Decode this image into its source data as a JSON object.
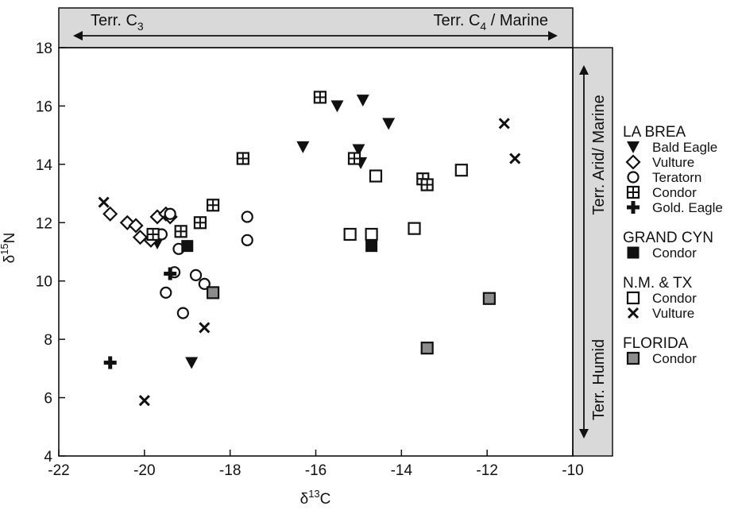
{
  "chart_data": {
    "type": "scatter",
    "xlabel": {
      "base": "δ",
      "sup": "13",
      "rest": "C"
    },
    "ylabel": {
      "base": "δ",
      "sup": "15",
      "rest": "N"
    },
    "xlim": [
      -22,
      -10
    ],
    "ylim": [
      4,
      18
    ],
    "xticks": [
      -22,
      -20,
      -18,
      -16,
      -14,
      -12,
      -10
    ],
    "yticks": [
      4,
      6,
      8,
      10,
      12,
      14,
      16,
      18
    ],
    "top_band": {
      "left": {
        "text": "Terr. C",
        "sub": "3"
      },
      "right": {
        "text": "Terr. C",
        "sub": "4",
        "rest": " / Marine"
      }
    },
    "right_band": {
      "top": "Terr. Arid/ Marine",
      "bottom": "Terr. Humid"
    },
    "legend": [
      {
        "group": "LA BREA",
        "items": [
          {
            "label": "Bald Eagle",
            "marker": "tri-down"
          },
          {
            "label": "Vulture",
            "marker": "diamond"
          },
          {
            "label": "Teratorn",
            "marker": "circle"
          },
          {
            "label": "Condor",
            "marker": "grid-square"
          },
          {
            "label": "Gold. Eagle",
            "marker": "plus"
          }
        ]
      },
      {
        "group": "GRAND CYN",
        "items": [
          {
            "label": "Condor",
            "marker": "filled-square"
          }
        ]
      },
      {
        "group": "N.M. & TX",
        "items": [
          {
            "label": "Condor",
            "marker": "open-square"
          },
          {
            "label": "Vulture",
            "marker": "cross"
          }
        ]
      },
      {
        "group": "FLORIDA",
        "items": [
          {
            "label": "Condor",
            "marker": "gray-square"
          }
        ]
      }
    ],
    "series": [
      {
        "name": "Bald Eagle",
        "group": "LA BREA",
        "marker": "tri-down",
        "points": [
          [
            -15.5,
            16.0
          ],
          [
            -14.9,
            16.2
          ],
          [
            -14.3,
            15.4
          ],
          [
            -16.3,
            14.6
          ],
          [
            -15.0,
            14.5
          ],
          [
            -14.95,
            14.05
          ],
          [
            -19.7,
            11.3
          ],
          [
            -18.9,
            7.2
          ]
        ]
      },
      {
        "name": "Vulture",
        "group": "LA BREA",
        "marker": "diamond",
        "points": [
          [
            -20.8,
            12.3
          ],
          [
            -20.4,
            12.0
          ],
          [
            -20.2,
            11.9
          ],
          [
            -20.1,
            11.5
          ],
          [
            -19.85,
            11.4
          ],
          [
            -19.7,
            12.2
          ],
          [
            -19.5,
            12.3
          ],
          [
            -19.4,
            12.2
          ]
        ]
      },
      {
        "name": "Teratorn",
        "group": "LA BREA",
        "marker": "circle",
        "points": [
          [
            -19.4,
            12.3
          ],
          [
            -19.6,
            11.6
          ],
          [
            -19.2,
            11.1
          ],
          [
            -19.3,
            10.3
          ],
          [
            -19.5,
            9.6
          ],
          [
            -19.1,
            8.9
          ],
          [
            -18.8,
            10.2
          ],
          [
            -18.6,
            9.9
          ],
          [
            -17.6,
            12.2
          ],
          [
            -17.6,
            11.4
          ]
        ]
      },
      {
        "name": "Condor",
        "group": "LA BREA",
        "marker": "grid-square",
        "points": [
          [
            -15.9,
            16.3
          ],
          [
            -17.7,
            14.2
          ],
          [
            -15.1,
            14.2
          ],
          [
            -18.4,
            12.6
          ],
          [
            -18.7,
            12.0
          ],
          [
            -19.15,
            11.7
          ],
          [
            -19.8,
            11.6
          ],
          [
            -13.5,
            13.5
          ],
          [
            -13.4,
            13.3
          ]
        ]
      },
      {
        "name": "Gold. Eagle",
        "group": "LA BREA",
        "marker": "plus",
        "points": [
          [
            -20.8,
            7.2
          ],
          [
            -19.4,
            10.25
          ]
        ]
      },
      {
        "name": "Condor",
        "group": "GRAND CYN",
        "marker": "filled-square",
        "points": [
          [
            -19.0,
            11.2
          ],
          [
            -14.7,
            11.2
          ]
        ]
      },
      {
        "name": "Condor",
        "group": "N.M. & TX",
        "marker": "open-square",
        "points": [
          [
            -14.6,
            13.6
          ],
          [
            -15.2,
            11.6
          ],
          [
            -14.7,
            11.6
          ],
          [
            -13.7,
            11.8
          ],
          [
            -12.6,
            13.8
          ]
        ]
      },
      {
        "name": "Vulture",
        "group": "N.M. & TX",
        "marker": "cross",
        "points": [
          [
            -20.95,
            12.7
          ],
          [
            -18.6,
            8.4
          ],
          [
            -20.0,
            5.9
          ],
          [
            -11.6,
            15.4
          ],
          [
            -11.35,
            14.2
          ]
        ]
      },
      {
        "name": "Condor",
        "group": "FLORIDA",
        "marker": "gray-square",
        "points": [
          [
            -18.4,
            9.6
          ],
          [
            -13.4,
            7.7
          ],
          [
            -11.95,
            9.4
          ]
        ]
      }
    ]
  }
}
